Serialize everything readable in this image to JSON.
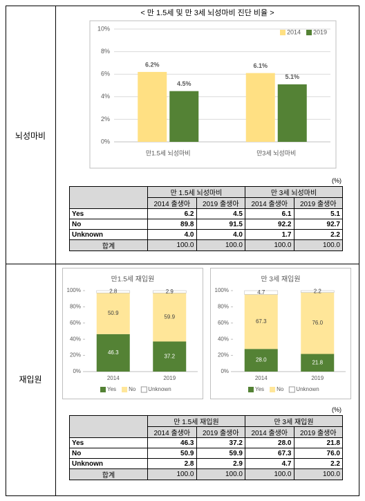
{
  "sections": [
    {
      "label": "뇌성마비"
    },
    {
      "label": "재입원"
    }
  ],
  "chart_data": [
    {
      "type": "bar",
      "title": "< 만 1.5세 및 만 3세 뇌성마비 진단 비율 >",
      "categories": [
        "만1.5세 뇌성마비",
        "만3세 뇌성마비"
      ],
      "series": [
        {
          "name": "2014",
          "color": "#ffe083",
          "values": [
            6.2,
            6.1
          ],
          "value_labels": [
            "6.2%",
            "6.1%"
          ]
        },
        {
          "name": "2019",
          "color": "#548235",
          "values": [
            4.5,
            5.1
          ],
          "value_labels": [
            "4.5%",
            "5.1%"
          ]
        }
      ],
      "ylim": [
        0,
        10
      ],
      "yticks": [
        {
          "value": 0,
          "label": "0%"
        },
        {
          "value": 2,
          "label": "2%"
        },
        {
          "value": 4,
          "label": "4%"
        },
        {
          "value": 6,
          "label": "6%"
        },
        {
          "value": 8,
          "label": "8%"
        },
        {
          "value": 10,
          "label": "10%"
        }
      ],
      "grid": true,
      "legend": "top-right"
    },
    {
      "type": "stacked_bar",
      "title": "만1.5세 재입원",
      "categories": [
        "2014",
        "2019"
      ],
      "series": [
        {
          "name": "Yes",
          "color": "#548235",
          "values": [
            46.3,
            37.2
          ]
        },
        {
          "name": "No",
          "color": "#ffe699",
          "values": [
            50.9,
            59.9
          ]
        },
        {
          "name": "Unknown",
          "color": "#ffffff",
          "values": [
            2.8,
            2.9
          ]
        }
      ],
      "ylim": [
        0,
        100
      ],
      "yticks": [
        {
          "value": 0,
          "label": "0%"
        },
        {
          "value": 20,
          "label": "20%"
        },
        {
          "value": 40,
          "label": "40%"
        },
        {
          "value": 60,
          "label": "60%"
        },
        {
          "value": 80,
          "label": "80%"
        },
        {
          "value": 100,
          "label": "100%"
        }
      ],
      "grid": false,
      "legend": "bottom"
    },
    {
      "type": "stacked_bar",
      "title": "만 3세 재입원",
      "categories": [
        "2014",
        "2019"
      ],
      "series": [
        {
          "name": "Yes",
          "color": "#548235",
          "values": [
            28.0,
            21.8
          ],
          "value_labels": [
            "28.0",
            "21.8"
          ]
        },
        {
          "name": "No",
          "color": "#ffe699",
          "values": [
            67.3,
            76.0
          ],
          "value_labels": [
            "67.3",
            "76.0"
          ]
        },
        {
          "name": "Unknown",
          "color": "#ffffff",
          "values": [
            4.7,
            2.2
          ]
        }
      ],
      "ylim": [
        0,
        100
      ],
      "yticks": [
        {
          "value": 0,
          "label": "0%"
        },
        {
          "value": 20,
          "label": "20%"
        },
        {
          "value": 40,
          "label": "40%"
        },
        {
          "value": 60,
          "label": "60%"
        },
        {
          "value": 80,
          "label": "80%"
        },
        {
          "value": 100,
          "label": "100%"
        }
      ],
      "grid": false,
      "legend": "bottom"
    }
  ],
  "tables": [
    {
      "unit": "(%)",
      "groups": [
        "만 1.5세 뇌성마비",
        "만 3세 뇌성마비"
      ],
      "subheaders": [
        "2014 출생아",
        "2019 출생아",
        "2014 출생아",
        "2019 출생아"
      ],
      "rows": [
        [
          "Yes",
          "6.2",
          "4.5",
          "6.1",
          "5.1"
        ],
        [
          "No",
          "89.8",
          "91.5",
          "92.2",
          "92.7"
        ],
        [
          "Unknown",
          "4.0",
          "4.0",
          "1.7",
          "2.2"
        ],
        [
          "합계",
          "100.0",
          "100.0",
          "100.0",
          "100.0"
        ]
      ]
    },
    {
      "unit": "(%)",
      "groups": [
        "만 1.5세 재입원",
        "만 3세 재입원"
      ],
      "subheaders": [
        "2014 출생아",
        "2019 출생아",
        "2014 출생아",
        "2019 출생아"
      ],
      "rows": [
        [
          "Yes",
          "46.3",
          "37.2",
          "28.0",
          "21.8"
        ],
        [
          "No",
          "50.9",
          "59.9",
          "67.3",
          "76.0"
        ],
        [
          "Unknown",
          "2.8",
          "2.9",
          "4.7",
          "2.2"
        ],
        [
          "합계",
          "100.0",
          "100.0",
          "100.0",
          "100.0"
        ]
      ]
    }
  ]
}
